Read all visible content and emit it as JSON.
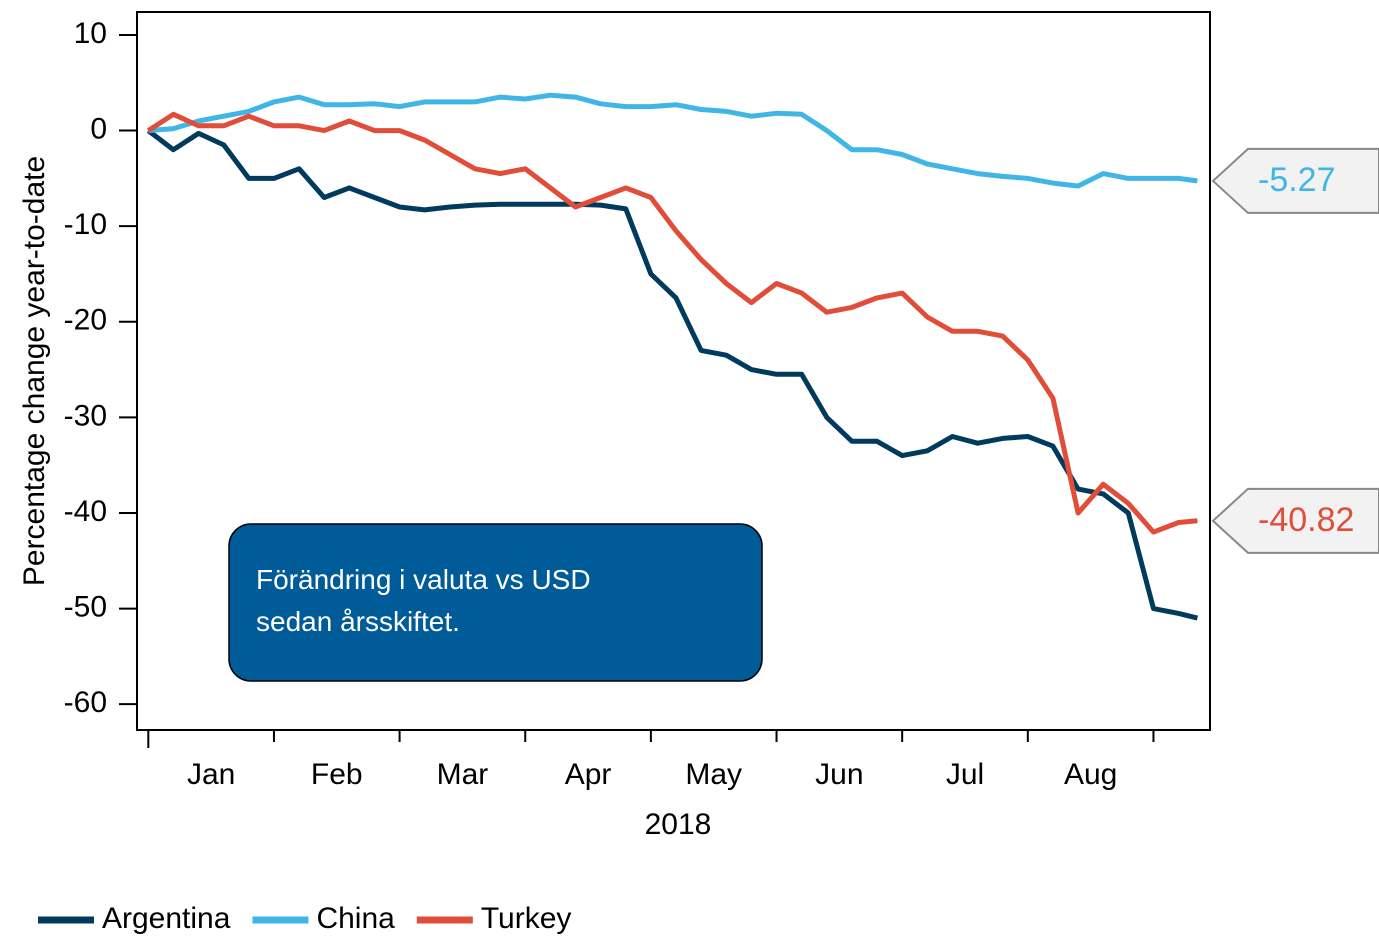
{
  "chart_data": {
    "type": "line",
    "y_label": "Percentage change year-to-date",
    "x_label": "2018",
    "annotation": "Förändring i valuta vs USD sedan årsskiftet.",
    "categories": [
      "Jan",
      "Feb",
      "Mar",
      "Apr",
      "May",
      "Jun",
      "Jul",
      "Aug"
    ],
    "x": [
      0,
      0.2,
      0.4,
      0.6,
      0.8,
      1.0,
      1.2,
      1.4,
      1.6,
      1.8,
      2.0,
      2.2,
      2.4,
      2.6,
      2.8,
      3.0,
      3.2,
      3.4,
      3.6,
      3.8,
      4.0,
      4.2,
      4.4,
      4.6,
      4.8,
      5.0,
      5.2,
      5.4,
      5.6,
      5.8,
      6.0,
      6.2,
      6.4,
      6.6,
      6.8,
      7.0,
      7.2,
      7.4,
      7.6,
      7.8,
      8.0,
      8.2,
      8.35
    ],
    "xlim": [
      -0.09,
      8.45
    ],
    "ylim": [
      -62.7,
      12.4
    ],
    "yticks": [
      10,
      0,
      -10,
      -20,
      -30,
      -40,
      -50,
      -60
    ],
    "series": [
      {
        "name": "Argentina",
        "color": "#003a5d",
        "values": [
          0,
          -2,
          -0.3,
          -1.5,
          -5,
          -5,
          -4,
          -7,
          -6,
          -7,
          -8,
          -8.3,
          -8,
          -7.8,
          -7.7,
          -7.7,
          -7.7,
          -7.7,
          -7.8,
          -8.2,
          -15,
          -17.5,
          -23,
          -23.5,
          -25,
          -25.5,
          -25.5,
          -30,
          -32.5,
          -32.5,
          -34,
          -33.5,
          -32,
          -32.7,
          -32.2,
          -32,
          -33,
          -37.5,
          -38,
          -40,
          -50,
          -50.5,
          -51
        ]
      },
      {
        "name": "China",
        "color": "#41b6e6",
        "values": [
          0,
          0.2,
          1,
          1.5,
          2,
          3,
          3.5,
          2.7,
          2.7,
          2.8,
          2.5,
          3,
          3,
          3,
          3.5,
          3.3,
          3.7,
          3.5,
          2.8,
          2.5,
          2.5,
          2.7,
          2.2,
          2,
          1.5,
          1.8,
          1.7,
          0,
          -2,
          -2,
          -2.5,
          -3.5,
          -4,
          -4.5,
          -4.8,
          -5,
          -5.5,
          -5.8,
          -4.5,
          -5,
          -5,
          -5,
          -5.27
        ]
      },
      {
        "name": "Turkey",
        "color": "#e04e39",
        "values": [
          0,
          1.7,
          0.5,
          0.5,
          1.5,
          0.5,
          0.5,
          0,
          1,
          0,
          0,
          -1,
          -2.5,
          -4,
          -4.5,
          -4,
          -6,
          -8,
          -7,
          -6,
          -7,
          -10.5,
          -13.5,
          -16,
          -18,
          -16,
          -17,
          -19,
          -18.5,
          -17.5,
          -17,
          -19.5,
          -21,
          -21,
          -21.5,
          -24,
          -28,
          -40,
          -37,
          -39,
          -42,
          -41,
          -40.82
        ]
      }
    ],
    "end_labels": true,
    "legend": "bottom-left"
  }
}
